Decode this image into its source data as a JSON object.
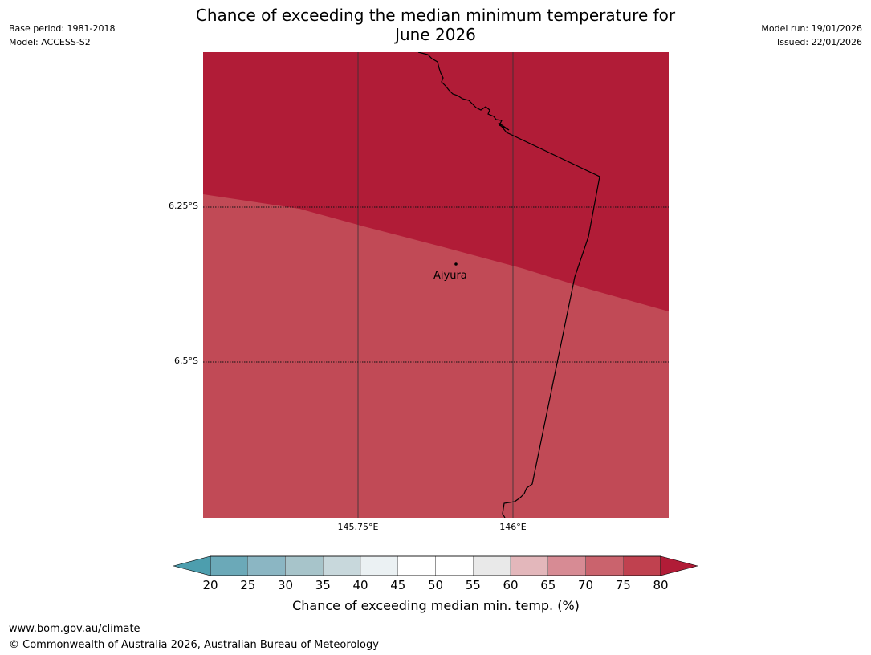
{
  "title": {
    "line1": "Chance of exceeding the median minimum temperature for",
    "line2": "June 2026"
  },
  "meta_left": {
    "base_period": "Base period: 1981-2018",
    "model": "Model: ACCESS-S2"
  },
  "meta_right": {
    "model_run": "Model run: 19/01/2026",
    "issued": "Issued: 22/01/2026"
  },
  "map": {
    "lat_labels": [
      "6.25°S",
      "6.5°S"
    ],
    "lon_labels": [
      "145.75°E",
      "146°E"
    ],
    "place": "Aiyura",
    "region_colors": {
      "upper": "#b11c37",
      "lower": "#c14a56"
    }
  },
  "colorbar": {
    "ticks": [
      "20",
      "25",
      "30",
      "35",
      "40",
      "45",
      "50",
      "55",
      "60",
      "65",
      "70",
      "75",
      "80"
    ],
    "bin_colors": [
      "#6ba9b8",
      "#8bb6c3",
      "#a7c4ca",
      "#c8d8dc",
      "#ebf1f3",
      "#ffffff",
      "#ffffff",
      "#e9e9e9",
      "#e3b7bb",
      "#d78b94",
      "#ca636d",
      "#c0414f"
    ],
    "under_color": "#4d9eae",
    "over_color": "#b11c37",
    "label": "Chance of exceeding median min. temp. (%)"
  },
  "footer": {
    "url": "www.bom.gov.au/climate",
    "copyright": "© Commonwealth of Australia 2026, Australian Bureau of Meteorology"
  }
}
